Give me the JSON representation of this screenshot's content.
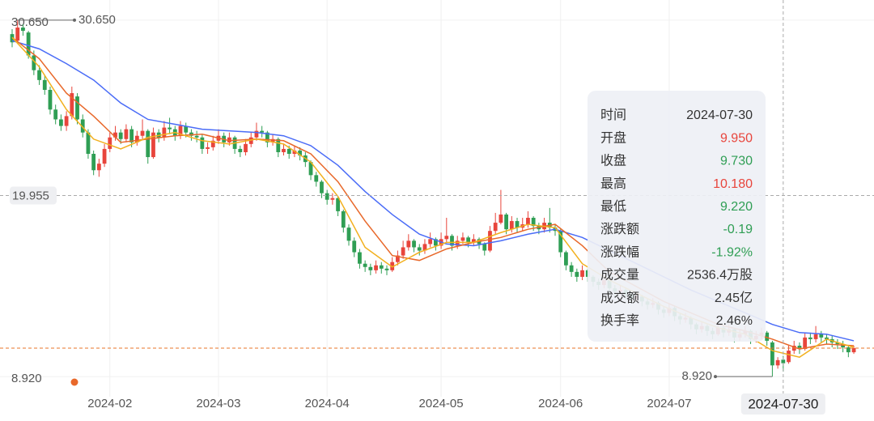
{
  "chart_data": {
    "type": "candlestick",
    "up_color": "#e8453c",
    "down_color": "#2f9e54",
    "ylim": [
      7.69,
      31.88
    ],
    "xlim": [
      -1,
      158
    ],
    "yticks": [
      {
        "value": 30.65,
        "label": "30.650"
      },
      {
        "value": 8.92,
        "label": "8.920"
      }
    ],
    "xticks": [
      {
        "value": 18,
        "label": "2024-02"
      },
      {
        "value": 38,
        "label": "2024-03"
      },
      {
        "value": 58,
        "label": "2024-04"
      },
      {
        "value": 79,
        "label": "2024-05"
      },
      {
        "value": 101,
        "label": "2024-06"
      },
      {
        "value": 121,
        "label": "2024-07"
      }
    ],
    "grid": true,
    "max_marker": {
      "index": 1,
      "value": 30.65,
      "label": "30.650"
    },
    "min_marker": {
      "index": 140,
      "value": 8.92,
      "label": "8.920"
    },
    "last_price": {
      "value": 10.65,
      "color": "#e8762a"
    },
    "crosshair": {
      "index": 142,
      "value": 19.955,
      "label": "19.955",
      "x_label": "2024-07-30"
    },
    "candles": [
      [
        29.8,
        29.3,
        30.1,
        29.0
      ],
      [
        29.4,
        30.2,
        30.65,
        29.2
      ],
      [
        30.2,
        30.0,
        30.4,
        29.7
      ],
      [
        29.9,
        28.5,
        30.0,
        28.3
      ],
      [
        28.5,
        27.6,
        28.8,
        27.3
      ],
      [
        27.6,
        27.0,
        27.9,
        26.7
      ],
      [
        27.0,
        26.4,
        27.3,
        26.1
      ],
      [
        26.4,
        25.2,
        26.6,
        24.9
      ],
      [
        25.2,
        24.6,
        25.5,
        24.3
      ],
      [
        24.6,
        24.2,
        24.9,
        23.9
      ],
      [
        24.2,
        24.8,
        25.1,
        23.9
      ],
      [
        24.8,
        26.2,
        26.6,
        24.6
      ],
      [
        26.0,
        24.6,
        26.2,
        24.3
      ],
      [
        24.6,
        23.8,
        24.9,
        23.5
      ],
      [
        23.8,
        22.5,
        24.0,
        22.2
      ],
      [
        22.5,
        21.5,
        22.7,
        21.2
      ],
      [
        21.5,
        21.9,
        22.2,
        21.1
      ],
      [
        21.9,
        22.8,
        23.1,
        21.7
      ],
      [
        22.8,
        23.5,
        23.8,
        22.6
      ],
      [
        23.5,
        23.8,
        24.2,
        23.3
      ],
      [
        23.8,
        23.4,
        24.0,
        23.1
      ],
      [
        23.4,
        24.0,
        24.3,
        23.2
      ],
      [
        24.0,
        23.2,
        24.2,
        22.9
      ],
      [
        23.2,
        23.6,
        23.9,
        23.0
      ],
      [
        23.6,
        23.9,
        24.6,
        23.4
      ],
      [
        23.9,
        22.3,
        24.0,
        21.9
      ],
      [
        22.3,
        23.8,
        24.1,
        22.2
      ],
      [
        23.8,
        23.5,
        24.0,
        23.2
      ],
      [
        23.5,
        24.1,
        24.5,
        23.3
      ],
      [
        24.1,
        24.0,
        24.7,
        23.7
      ],
      [
        24.0,
        23.6,
        24.2,
        23.3
      ],
      [
        23.6,
        24.2,
        24.5,
        23.4
      ],
      [
        24.2,
        23.8,
        24.4,
        23.5
      ],
      [
        23.8,
        23.6,
        24.0,
        23.3
      ],
      [
        23.6,
        23.5,
        23.9,
        23.2
      ],
      [
        23.5,
        22.8,
        23.7,
        22.5
      ],
      [
        22.8,
        22.9,
        23.2,
        22.5
      ],
      [
        22.9,
        23.3,
        23.6,
        22.7
      ],
      [
        23.3,
        23.6,
        24.0,
        23.1
      ],
      [
        23.6,
        23.2,
        23.8,
        22.9
      ],
      [
        23.2,
        23.5,
        23.8,
        23.0
      ],
      [
        23.5,
        22.8,
        23.6,
        22.5
      ],
      [
        22.8,
        22.6,
        23.0,
        22.3
      ],
      [
        22.6,
        23.1,
        23.4,
        22.4
      ],
      [
        23.1,
        23.5,
        23.8,
        22.9
      ],
      [
        23.5,
        23.9,
        24.4,
        23.3
      ],
      [
        23.9,
        23.8,
        24.2,
        23.5
      ],
      [
        23.8,
        23.2,
        23.9,
        22.9
      ],
      [
        23.2,
        23.4,
        23.7,
        23.0
      ],
      [
        23.4,
        22.6,
        23.5,
        22.3
      ],
      [
        22.6,
        22.8,
        23.1,
        22.4
      ],
      [
        22.8,
        22.5,
        23.0,
        22.2
      ],
      [
        22.5,
        22.7,
        23.0,
        22.3
      ],
      [
        22.7,
        22.4,
        22.9,
        22.1
      ],
      [
        22.4,
        22.0,
        22.6,
        21.7
      ],
      [
        22.0,
        21.2,
        22.1,
        20.9
      ],
      [
        21.2,
        20.8,
        21.4,
        20.5
      ],
      [
        20.8,
        20.1,
        20.9,
        19.8
      ],
      [
        20.1,
        19.7,
        20.3,
        19.4
      ],
      [
        19.7,
        19.8,
        20.1,
        19.4
      ],
      [
        19.8,
        19.0,
        19.9,
        18.7
      ],
      [
        19.0,
        18.0,
        19.1,
        17.7
      ],
      [
        18.0,
        17.2,
        18.2,
        16.9
      ],
      [
        17.2,
        16.5,
        17.4,
        16.2
      ],
      [
        16.5,
        15.8,
        16.7,
        15.5
      ],
      [
        15.8,
        15.6,
        16.0,
        15.3
      ],
      [
        15.6,
        15.4,
        15.8,
        15.1
      ],
      [
        15.4,
        15.7,
        16.0,
        15.2
      ],
      [
        15.7,
        15.5,
        15.9,
        15.2
      ],
      [
        15.5,
        15.4,
        15.7,
        15.1
      ],
      [
        15.4,
        15.9,
        16.2,
        15.3
      ],
      [
        15.9,
        16.3,
        16.6,
        15.7
      ],
      [
        16.3,
        16.8,
        17.2,
        16.1
      ],
      [
        16.8,
        17.2,
        17.6,
        16.6
      ],
      [
        17.2,
        16.8,
        17.3,
        16.5
      ],
      [
        16.8,
        16.6,
        17.0,
        16.3
      ],
      [
        16.6,
        17.0,
        17.3,
        16.4
      ],
      [
        17.0,
        17.3,
        17.7,
        16.8
      ],
      [
        17.3,
        16.9,
        17.4,
        16.6
      ],
      [
        16.9,
        17.3,
        17.7,
        16.7
      ],
      [
        17.3,
        17.5,
        18.6,
        17.1
      ],
      [
        17.5,
        16.9,
        17.6,
        16.6
      ],
      [
        16.9,
        17.2,
        17.5,
        16.7
      ],
      [
        17.2,
        17.4,
        17.7,
        17.0
      ],
      [
        17.4,
        17.1,
        17.5,
        16.8
      ],
      [
        17.1,
        17.3,
        17.6,
        16.9
      ],
      [
        17.3,
        17.0,
        17.4,
        16.7
      ],
      [
        17.0,
        16.6,
        17.1,
        16.3
      ],
      [
        16.6,
        17.8,
        18.1,
        16.5
      ],
      [
        17.8,
        18.3,
        18.9,
        17.6
      ],
      [
        18.3,
        18.8,
        20.3,
        18.2
      ],
      [
        18.8,
        17.9,
        18.9,
        17.6
      ],
      [
        17.9,
        18.4,
        18.7,
        17.7
      ],
      [
        18.4,
        18.0,
        18.6,
        17.7
      ],
      [
        18.0,
        18.2,
        18.6,
        17.8
      ],
      [
        18.2,
        18.6,
        19.0,
        18.0
      ],
      [
        18.6,
        18.1,
        18.7,
        17.8
      ],
      [
        18.1,
        17.9,
        18.3,
        17.6
      ],
      [
        17.9,
        18.3,
        18.6,
        17.7
      ],
      [
        18.3,
        18.0,
        19.2,
        17.7
      ],
      [
        18.0,
        17.8,
        18.2,
        17.5
      ],
      [
        17.8,
        16.5,
        17.9,
        16.2
      ],
      [
        16.5,
        15.7,
        16.6,
        15.4
      ],
      [
        15.7,
        15.3,
        15.9,
        15.0
      ],
      [
        15.3,
        15.0,
        15.5,
        14.7
      ],
      [
        15.0,
        15.4,
        15.7,
        14.8
      ],
      [
        15.4,
        15.0,
        15.5,
        14.7
      ],
      [
        15.0,
        14.7,
        15.1,
        14.4
      ],
      [
        14.7,
        14.5,
        14.9,
        14.2
      ],
      [
        14.5,
        14.8,
        15.1,
        14.3
      ],
      [
        14.8,
        14.3,
        14.9,
        14.0
      ],
      [
        14.3,
        14.1,
        14.5,
        13.8
      ],
      [
        14.1,
        14.2,
        14.5,
        13.9
      ],
      [
        14.2,
        13.9,
        14.3,
        13.6
      ],
      [
        13.9,
        13.7,
        14.1,
        13.4
      ],
      [
        13.7,
        13.8,
        14.1,
        13.5
      ],
      [
        13.8,
        13.5,
        13.9,
        13.2
      ],
      [
        13.5,
        13.3,
        13.7,
        13.0
      ],
      [
        13.3,
        13.4,
        13.7,
        13.1
      ],
      [
        13.4,
        13.0,
        13.5,
        12.7
      ],
      [
        13.0,
        12.8,
        13.2,
        12.5
      ],
      [
        12.8,
        13.1,
        13.4,
        12.6
      ],
      [
        13.1,
        12.6,
        13.2,
        12.3
      ],
      [
        12.6,
        12.4,
        12.8,
        12.1
      ],
      [
        12.4,
        12.5,
        12.8,
        12.2
      ],
      [
        12.5,
        12.1,
        12.6,
        11.8
      ],
      [
        12.1,
        11.8,
        12.2,
        11.5
      ],
      [
        11.8,
        12.0,
        12.3,
        11.6
      ],
      [
        12.0,
        11.7,
        12.1,
        11.4
      ],
      [
        11.7,
        11.5,
        11.9,
        11.2
      ],
      [
        11.5,
        11.9,
        12.2,
        11.4
      ],
      [
        11.9,
        11.6,
        12.0,
        11.3
      ],
      [
        11.6,
        11.8,
        12.1,
        11.4
      ],
      [
        11.8,
        11.3,
        11.9,
        11.0
      ],
      [
        11.3,
        11.5,
        11.8,
        11.1
      ],
      [
        11.5,
        11.7,
        12.0,
        11.3
      ],
      [
        11.7,
        11.2,
        11.8,
        10.9
      ],
      [
        11.2,
        11.4,
        11.7,
        11.0
      ],
      [
        11.4,
        11.6,
        11.9,
        11.2
      ],
      [
        11.6,
        11.1,
        11.7,
        10.8
      ],
      [
        11.0,
        9.6,
        11.1,
        8.92
      ],
      [
        9.6,
        9.92,
        10.1,
        9.4
      ],
      [
        9.95,
        9.73,
        10.18,
        9.22
      ],
      [
        9.8,
        10.5,
        10.8,
        9.7
      ],
      [
        10.5,
        10.8,
        11.1,
        10.3
      ],
      [
        10.8,
        10.6,
        11.0,
        10.3
      ],
      [
        10.6,
        11.3,
        11.6,
        10.5
      ],
      [
        11.3,
        11.2,
        11.6,
        10.9
      ],
      [
        11.2,
        11.5,
        12.0,
        11.0
      ],
      [
        11.5,
        11.3,
        11.7,
        11.0
      ],
      [
        11.3,
        11.2,
        11.5,
        10.9
      ],
      [
        11.2,
        11.0,
        11.4,
        10.7
      ],
      [
        11.0,
        10.9,
        11.2,
        10.6
      ],
      [
        10.9,
        10.7,
        11.1,
        10.4
      ],
      [
        10.7,
        10.4,
        10.8,
        10.1
      ],
      [
        10.4,
        10.65,
        10.8,
        10.3
      ]
    ],
    "lines": [
      {
        "color": "#4a6cf7",
        "x": [
          0,
          5,
          10,
          15,
          20,
          25,
          30,
          35,
          40,
          45,
          50,
          55,
          60,
          65,
          70,
          75,
          80,
          85,
          90,
          95,
          100,
          105,
          110,
          115,
          120,
          125,
          130,
          135,
          140,
          145,
          150,
          155
        ],
        "values": [
          29.4,
          28.9,
          28.0,
          27.0,
          25.6,
          24.6,
          24.3,
          24.0,
          23.9,
          23.8,
          23.6,
          23.0,
          21.8,
          20.2,
          18.8,
          17.6,
          17.0,
          16.9,
          17.2,
          17.6,
          17.9,
          17.4,
          16.6,
          15.8,
          15.0,
          14.2,
          13.5,
          12.8,
          12.1,
          11.6,
          11.5,
          11.1
        ]
      },
      {
        "color": "#e8682a",
        "x": [
          0,
          5,
          10,
          15,
          20,
          25,
          30,
          35,
          40,
          45,
          50,
          55,
          60,
          65,
          70,
          75,
          80,
          85,
          90,
          95,
          100,
          105,
          110,
          115,
          120,
          125,
          130,
          135,
          140,
          145,
          150,
          155
        ],
        "values": [
          29.6,
          28.3,
          26.2,
          24.8,
          23.2,
          23.4,
          23.6,
          23.7,
          23.3,
          23.4,
          23.3,
          22.5,
          20.8,
          18.4,
          16.3,
          16.0,
          16.7,
          17.1,
          17.4,
          17.9,
          18.2,
          16.9,
          15.3,
          14.4,
          13.5,
          12.8,
          12.1,
          11.7,
          11.2,
          10.6,
          10.9,
          10.8
        ]
      },
      {
        "color": "#f2b01e",
        "x": [
          0,
          5,
          10,
          15,
          20,
          25,
          30,
          35,
          40,
          45,
          50,
          55,
          60,
          65,
          70,
          75,
          80,
          85,
          90,
          95,
          100,
          105,
          110,
          115,
          120,
          125,
          130,
          135,
          140,
          145,
          150,
          155
        ],
        "values": [
          29.6,
          27.8,
          25.2,
          23.4,
          22.8,
          23.5,
          23.8,
          23.3,
          23.1,
          23.4,
          23.1,
          22.0,
          19.9,
          16.8,
          15.6,
          16.5,
          17.1,
          17.1,
          17.7,
          18.2,
          18.0,
          15.8,
          14.8,
          14.0,
          13.2,
          12.5,
          11.9,
          11.5,
          10.5,
          10.1,
          11.2,
          10.7
        ]
      }
    ],
    "tooltip": {
      "rows": [
        {
          "label": "时间",
          "value": "2024-07-30",
          "color": "#333333"
        },
        {
          "label": "开盘",
          "value": "9.950",
          "color": "#e8453c"
        },
        {
          "label": "收盘",
          "value": "9.730",
          "color": "#2f9e54"
        },
        {
          "label": "最高",
          "value": "10.180",
          "color": "#e8453c"
        },
        {
          "label": "最低",
          "value": "9.220",
          "color": "#2f9e54"
        },
        {
          "label": "涨跌额",
          "value": "-0.19",
          "color": "#2f9e54"
        },
        {
          "label": "涨跌幅",
          "value": "-1.92%",
          "color": "#2f9e54"
        },
        {
          "label": "成交量",
          "value": "2536.4万股",
          "color": "#333333"
        },
        {
          "label": "成交额",
          "value": "2.45亿",
          "color": "#333333"
        },
        {
          "label": "换手率",
          "value": "2.46%",
          "color": "#333333"
        }
      ]
    }
  }
}
